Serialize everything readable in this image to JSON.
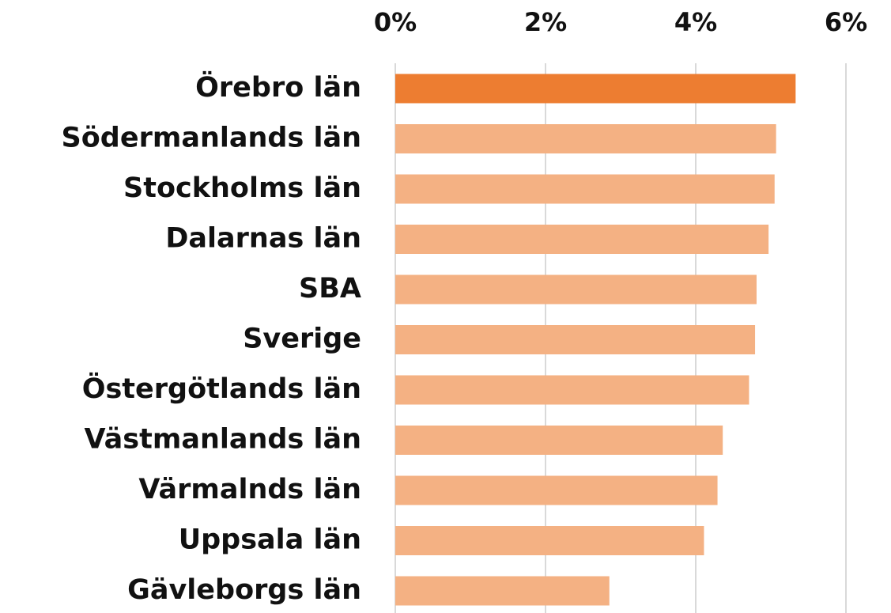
{
  "chart_data": {
    "type": "barh",
    "categories": [
      "Örebro län",
      "Södermanlands län",
      "Stockholms län",
      "Dalarnas län",
      "SBA",
      "Sverige",
      "Östergötlands län",
      "Västmanlands län",
      "Värmalnds län",
      "Uppsala län",
      "Gävleborgs län"
    ],
    "values": [
      5.33,
      5.07,
      5.05,
      4.97,
      4.81,
      4.79,
      4.71,
      4.36,
      4.29,
      4.11,
      2.85
    ],
    "colors": [
      "#ed7d31",
      "#f4b183",
      "#f4b183",
      "#f4b183",
      "#f4b183",
      "#f4b183",
      "#f4b183",
      "#f4b183",
      "#f4b183",
      "#f4b183",
      "#f4b183"
    ],
    "xlim": [
      0,
      6
    ],
    "xticks": [
      {
        "value": 0,
        "label": "0%"
      },
      {
        "value": 2,
        "label": "2%"
      },
      {
        "value": 4,
        "label": "4%"
      },
      {
        "value": 6,
        "label": "6%"
      }
    ],
    "grid": true
  }
}
